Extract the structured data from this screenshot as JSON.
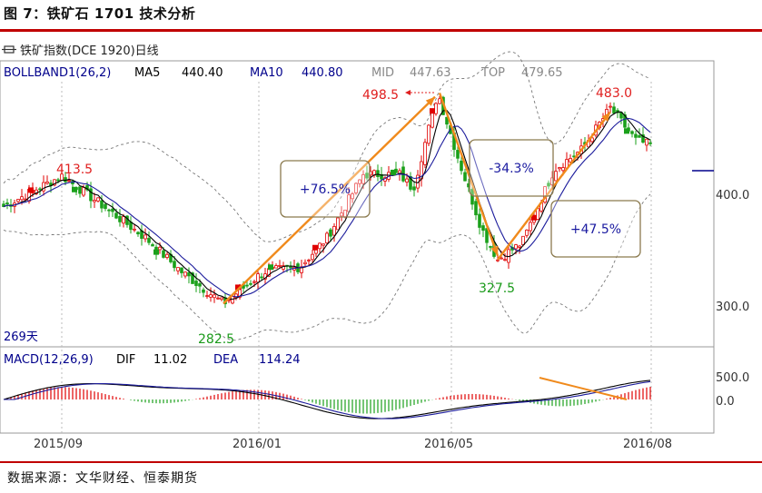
{
  "figure_title": "图 7：铁矿石 1701 技术分析",
  "source": "数据来源：文华财经、恒泰期货",
  "chart_data": [
    {
      "type": "candlestick",
      "title": "铁矿指数(DCE 1920)日线",
      "indicator_labels": [
        {
          "key": "BOLLBAND1(26,2)",
          "value": "",
          "color": "#00008b"
        },
        {
          "key": "MA5",
          "value": "440.40",
          "color": "#000000"
        },
        {
          "key": "MA10",
          "value": "440.80",
          "color": "#00008b"
        },
        {
          "key": "MID",
          "value": "447.63",
          "color": "#888888"
        },
        {
          "key": "TOP",
          "value": "479.65",
          "color": "#888888"
        }
      ],
      "y_ticks": [
        "400.0",
        "300.0"
      ],
      "ylim": [
        240,
        510
      ],
      "x_ticks": [
        "2015/09",
        "2016/01",
        "2016/05",
        "2016/08"
      ],
      "period_note": "269天",
      "price_labels": [
        {
          "text": "413.5",
          "kind": "high"
        },
        {
          "text": "282.5",
          "kind": "low"
        },
        {
          "text": "498.5",
          "kind": "high"
        },
        {
          "text": "327.5",
          "kind": "low"
        },
        {
          "text": "483.0",
          "kind": "high"
        }
      ],
      "swing_annotations": [
        "+76.5%",
        "-34.3%",
        "+47.5%"
      ],
      "swing_points": {
        "p1": 282.5,
        "p2": 498.5,
        "p3": 327.5,
        "p4": 483.0
      },
      "last_price": 445,
      "colors": {
        "up": "#e00000",
        "down": "#1aa01a",
        "ma5": "#000000",
        "ma10": "#1c1c9c",
        "boll": "#777777",
        "trend": "#f08a1c"
      }
    },
    {
      "type": "bar+line",
      "title": "MACD(12,26,9)",
      "indicator_labels": [
        {
          "key": "DIF",
          "value": "11.02"
        },
        {
          "key": "DEA",
          "value": "114.24"
        }
      ],
      "y_ticks": [
        "500.0",
        "0.0"
      ]
    }
  ]
}
